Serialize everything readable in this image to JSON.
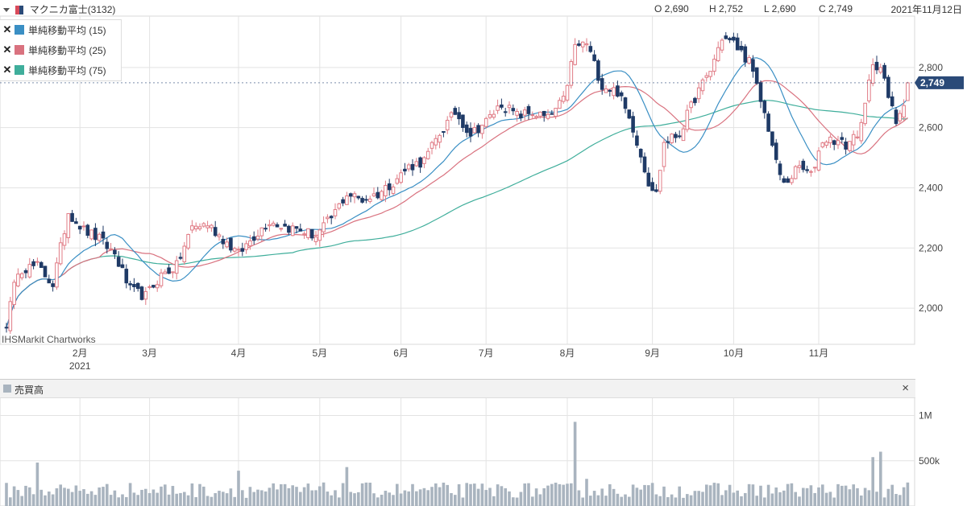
{
  "header": {
    "symbol": "マクニカ富士(3132)",
    "open": "O 2,690",
    "high": "H 2,752",
    "low": "L 2,690",
    "close": "C 2,749",
    "date": "2021年11月12日"
  },
  "legend": [
    {
      "label": "単純移動平均 (15)",
      "color": "#3a8fc4"
    },
    {
      "label": "単純移動平均 (25)",
      "color": "#d9727f"
    },
    {
      "label": "単純移動平均 (75)",
      "color": "#3fae9b"
    }
  ],
  "watermark": "IHSMarkit Chartworks",
  "volume_panel": {
    "title": "売買高"
  },
  "colors": {
    "up": "#e07b85",
    "down": "#1f3a66",
    "volume": "#a9b4bf",
    "current": "#2b4a78"
  },
  "chart_data": [
    {
      "type": "candlestick",
      "title": "マクニカ富士(3132)",
      "x_tick_labels": [
        "2月",
        "3月",
        "4月",
        "5月",
        "6月",
        "7月",
        "8月",
        "9月",
        "10月",
        "11月"
      ],
      "x_year_label": "2021",
      "y_ticks": [
        2000,
        2200,
        2400,
        2600,
        2800
      ],
      "y_tick_labels": [
        "2,000",
        "2,200",
        "2,400",
        "2,600",
        "2,800"
      ],
      "ylim": [
        1880,
        2960
      ],
      "current_price": 2749,
      "current_price_label": "2,749",
      "last_bar": {
        "open": 2690,
        "high": 2752,
        "low": 2690,
        "close": 2749
      },
      "price_path": [
        [
          0,
          1950
        ],
        [
          3,
          2130
        ],
        [
          8,
          2140
        ],
        [
          12,
          2080
        ],
        [
          16,
          2320
        ],
        [
          20,
          2260
        ],
        [
          24,
          2230
        ],
        [
          28,
          2180
        ],
        [
          32,
          2060
        ],
        [
          36,
          2040
        ],
        [
          40,
          2110
        ],
        [
          44,
          2140
        ],
        [
          48,
          2270
        ],
        [
          52,
          2280
        ],
        [
          56,
          2230
        ],
        [
          60,
          2180
        ],
        [
          64,
          2240
        ],
        [
          68,
          2290
        ],
        [
          72,
          2270
        ],
        [
          76,
          2260
        ],
        [
          80,
          2240
        ],
        [
          84,
          2300
        ],
        [
          88,
          2380
        ],
        [
          92,
          2360
        ],
        [
          96,
          2380
        ],
        [
          100,
          2420
        ],
        [
          104,
          2470
        ],
        [
          108,
          2490
        ],
        [
          112,
          2580
        ],
        [
          116,
          2650
        ],
        [
          120,
          2580
        ],
        [
          124,
          2620
        ],
        [
          128,
          2680
        ],
        [
          132,
          2640
        ],
        [
          136,
          2650
        ],
        [
          140,
          2630
        ],
        [
          144,
          2690
        ],
        [
          147,
          2870
        ],
        [
          150,
          2880
        ],
        [
          154,
          2740
        ],
        [
          158,
          2720
        ],
        [
          162,
          2600
        ],
        [
          166,
          2420
        ],
        [
          168,
          2380
        ],
        [
          170,
          2550
        ],
        [
          174,
          2580
        ],
        [
          178,
          2700
        ],
        [
          182,
          2790
        ],
        [
          185,
          2900
        ],
        [
          188,
          2880
        ],
        [
          192,
          2820
        ],
        [
          195,
          2690
        ],
        [
          197,
          2600
        ],
        [
          199,
          2480
        ],
        [
          201,
          2410
        ],
        [
          205,
          2470
        ],
        [
          208,
          2440
        ],
        [
          211,
          2560
        ],
        [
          214,
          2560
        ],
        [
          217,
          2540
        ],
        [
          221,
          2600
        ],
        [
          224,
          2820
        ],
        [
          226,
          2800
        ],
        [
          228,
          2700
        ],
        [
          230,
          2620
        ],
        [
          232,
          2690
        ],
        [
          233,
          2749
        ]
      ],
      "volume": {
        "y_ticks": [
          500000,
          1000000
        ],
        "y_tick_labels": [
          "500k",
          "1M"
        ],
        "ylim": [
          0,
          1200000
        ],
        "spikes": [
          [
            8,
            480000
          ],
          [
            60,
            390000
          ],
          [
            88,
            430000
          ],
          [
            147,
            930000
          ],
          [
            150,
            300000
          ],
          [
            224,
            540000
          ],
          [
            226,
            600000
          ]
        ]
      }
    }
  ]
}
